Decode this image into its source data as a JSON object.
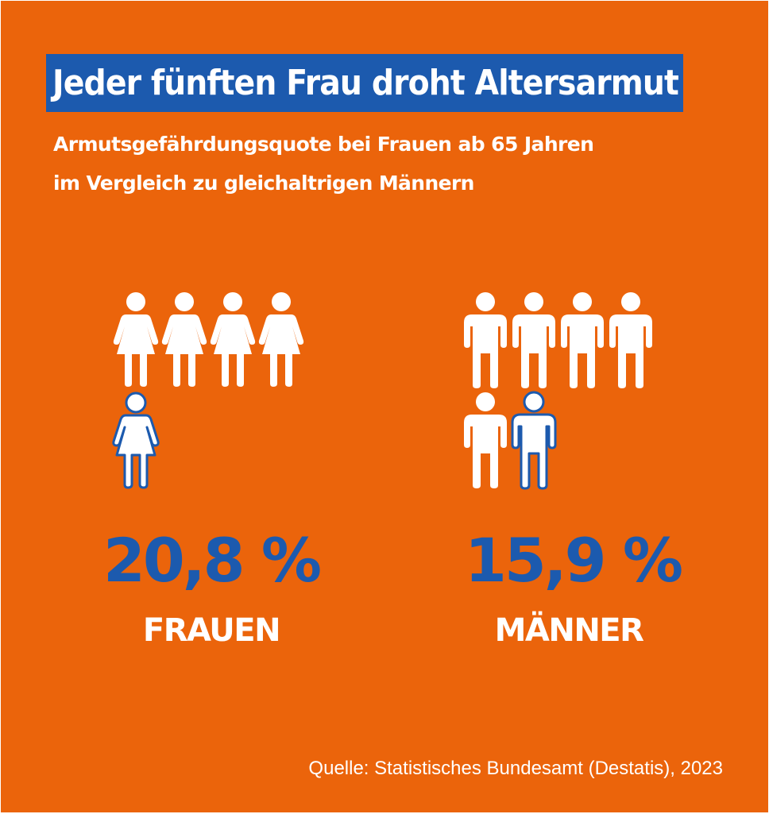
{
  "colors": {
    "background": "#EB640B",
    "accent_blue": "#1C5AAE",
    "icon_white": "#FFFFFF"
  },
  "headline": "Jeder fünften Frau droht Altersarmut",
  "subtitle_line1": "Armutsgefährdungsquote bei Frauen ab 65 Jahren",
  "subtitle_line2": "im Vergleich zu gleichaltrigen Männern",
  "source": "Quelle: Statistisches Bundesamt (Destatis), 2023",
  "chart_data": {
    "type": "pictogram",
    "unit": "%",
    "series": [
      {
        "name": "FRAUEN",
        "value": 20.8,
        "value_label": "20,8 %",
        "icon": "woman-icon",
        "icons_total": 5,
        "icons_highlighted": 1
      },
      {
        "name": "MÄNNER",
        "value": 15.9,
        "value_label": "15,9 %",
        "icon": "man-icon",
        "icons_total": 6,
        "icons_highlighted": 1
      }
    ]
  }
}
